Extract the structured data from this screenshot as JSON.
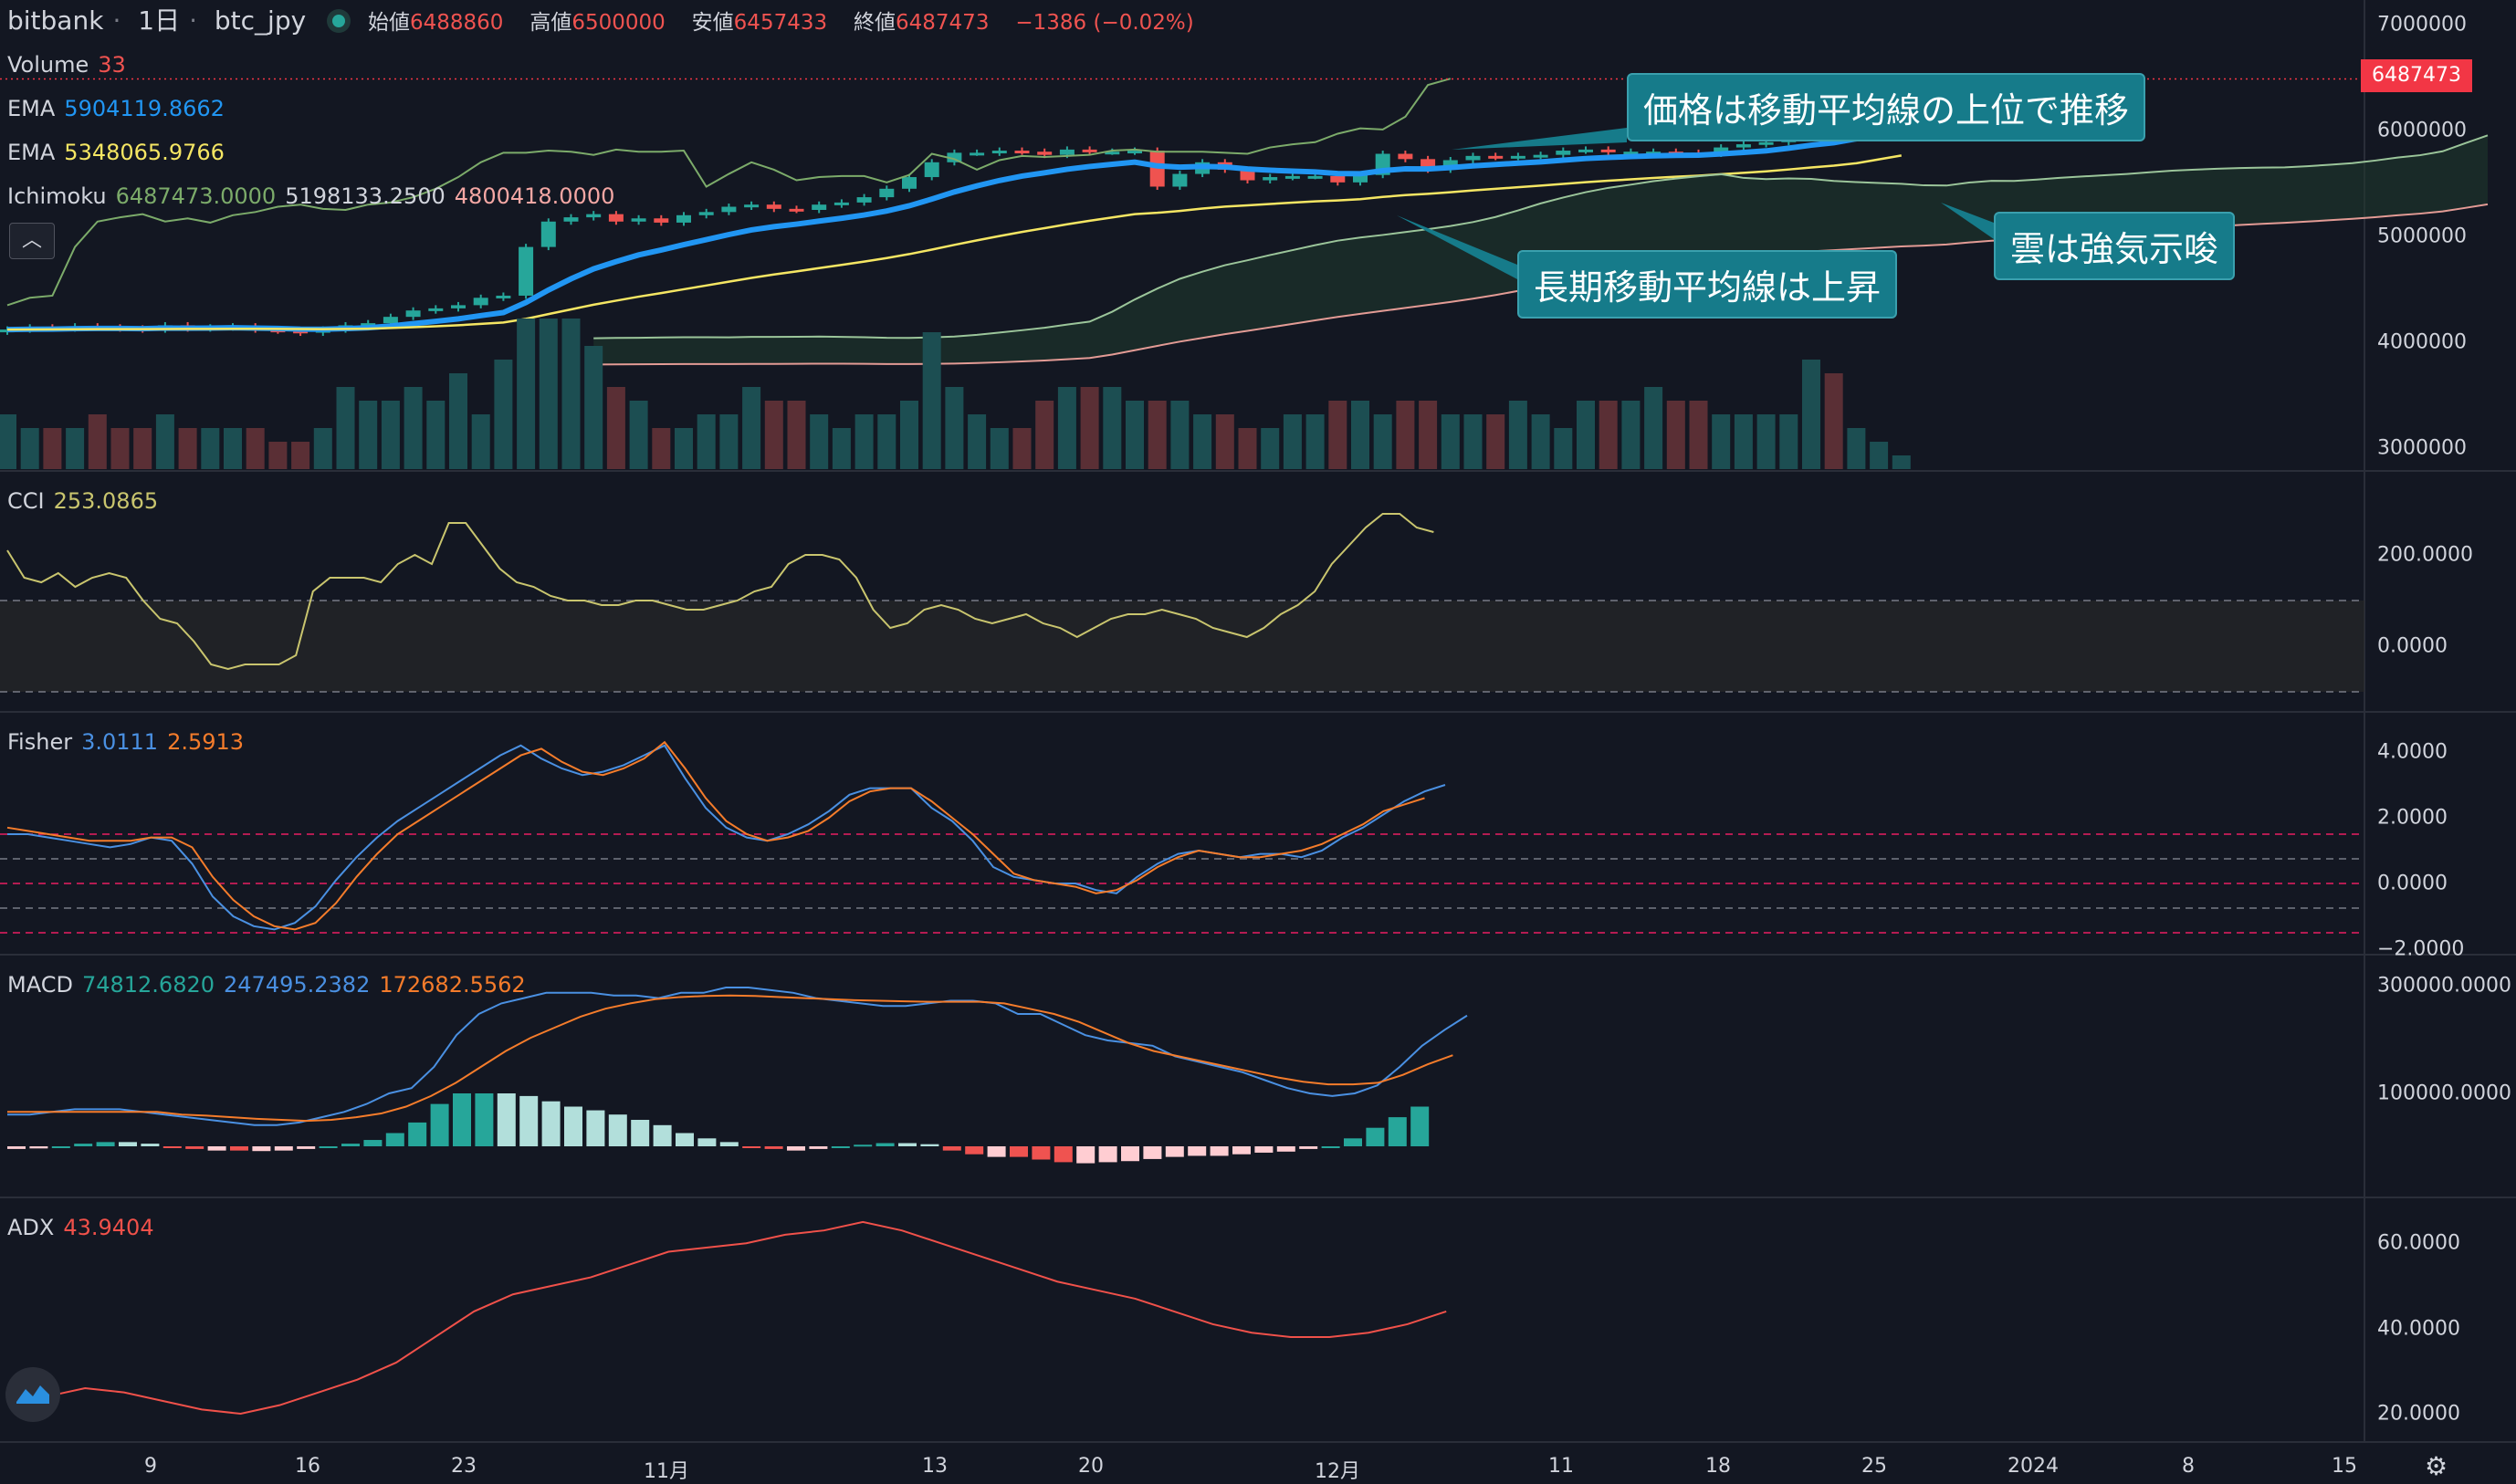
{
  "header": {
    "exchange": "bitbank",
    "interval": "1日",
    "symbol": "btc_jpy",
    "open_label": "始値",
    "open": "6488860",
    "high_label": "高値",
    "high": "6500000",
    "low_label": "安値",
    "low": "6457433",
    "close_label": "終値",
    "close": "6487473",
    "change": "−1386 (−0.02%)"
  },
  "legend": {
    "volume": {
      "name": "Volume",
      "value": "33"
    },
    "ema1": {
      "name": "EMA",
      "value": "5904119.8662"
    },
    "ema2": {
      "name": "EMA",
      "value": "5348065.9766"
    },
    "ichimoku": {
      "name": "Ichimoku",
      "v1": "6487473.0000",
      "v2": "5198133.2500",
      "v3": "4800418.0000"
    },
    "cci": {
      "name": "CCI",
      "value": "253.0865"
    },
    "fisher": {
      "name": "Fisher",
      "v1": "3.0111",
      "v2": "2.5913"
    },
    "macd": {
      "name": "MACD",
      "v1": "74812.6820",
      "v2": "247495.2382",
      "v3": "172682.5562"
    },
    "adx": {
      "name": "ADX",
      "value": "43.9404"
    }
  },
  "price_axis": [
    "7000000",
    "6000000",
    "5000000",
    "4000000",
    "3000000"
  ],
  "last_price_tag": "6487473",
  "cci_axis": [
    "200.0000",
    "0.0000"
  ],
  "fisher_axis": [
    "4.0000",
    "2.0000",
    "0.0000",
    "−2.0000"
  ],
  "macd_axis": [
    "300000.0000",
    "100000.0000"
  ],
  "adx_axis": [
    "60.0000",
    "40.0000",
    "20.0000"
  ],
  "time_axis": [
    "9",
    "16",
    "23",
    "11月",
    "13",
    "20",
    "12月",
    "11",
    "18",
    "25",
    "2024",
    "8",
    "15"
  ],
  "annotations": {
    "a1": "価格は移動平均線の上位で推移",
    "a2": "長期移動平均線は上昇",
    "a3": "雲は強気示唆"
  },
  "colors": {
    "up": "#26a69a",
    "down": "#ef5350",
    "ema1": "#2196f3",
    "ema2": "#f5e663",
    "cci": "#c9c56e",
    "fisher1": "#4a90e2",
    "fisher2": "#f57c2b",
    "adx": "#f0514a",
    "callout": "#167b8a"
  },
  "icons": {
    "collapse": "chevron-up-icon",
    "logo": "tradingview-logo-icon",
    "settings": "gear-icon"
  },
  "chart_data": [
    {
      "type": "candlestick",
      "title": "btc_jpy 1日",
      "series": [
        {
          "name": "EMA",
          "last": 5904119.8662
        },
        {
          "name": "EMA",
          "last": 5348065.9766
        },
        {
          "name": "Ichimoku",
          "last": [
            6487473.0,
            5198133.25,
            4800418.0
          ]
        }
      ],
      "close": [
        4120000,
        4140000,
        4130000,
        4150000,
        4140000,
        4130000,
        4120000,
        4160000,
        4130000,
        4140000,
        4150000,
        4120000,
        4110000,
        4090000,
        4120000,
        4160000,
        4180000,
        4240000,
        4300000,
        4320000,
        4350000,
        4420000,
        4440000,
        4900000,
        5140000,
        5180000,
        5210000,
        5140000,
        5170000,
        5130000,
        5200000,
        5230000,
        5280000,
        5300000,
        5260000,
        5250000,
        5300000,
        5320000,
        5370000,
        5450000,
        5560000,
        5700000,
        5790000,
        5790000,
        5810000,
        5800000,
        5770000,
        5820000,
        5800000,
        5800000,
        5810000,
        5470000,
        5590000,
        5700000,
        5630000,
        5530000,
        5560000,
        5570000,
        5570000,
        5510000,
        5580000,
        5780000,
        5730000,
        5630000,
        5720000,
        5760000,
        5750000,
        5760000,
        5770000,
        5810000,
        5820000,
        5800000,
        5800000,
        5800000,
        5790000,
        5780000,
        5840000,
        5870000,
        5890000,
        5970000,
        6020000,
        6010000,
        6130000,
        6430000,
        6490000
      ],
      "volume_relative": [
        0.4,
        0.3,
        0.3,
        0.3,
        0.4,
        0.3,
        0.3,
        0.4,
        0.3,
        0.3,
        0.3,
        0.3,
        0.2,
        0.2,
        0.3,
        0.6,
        0.5,
        0.5,
        0.6,
        0.5,
        0.7,
        0.4,
        0.8,
        1.1,
        1.1,
        1.1,
        0.9,
        0.6,
        0.5,
        0.3,
        0.3,
        0.4,
        0.4,
        0.6,
        0.5,
        0.5,
        0.4,
        0.3,
        0.4,
        0.4,
        0.5,
        1.0,
        0.6,
        0.4,
        0.3,
        0.3,
        0.5,
        0.6,
        0.6,
        0.6,
        0.5,
        0.5,
        0.5,
        0.4,
        0.4,
        0.3,
        0.3,
        0.4,
        0.4,
        0.5,
        0.5,
        0.4,
        0.5,
        0.5,
        0.4,
        0.4,
        0.4,
        0.5,
        0.4,
        0.3,
        0.5,
        0.5,
        0.5,
        0.6,
        0.5,
        0.5,
        0.4,
        0.4,
        0.4,
        0.4,
        0.8,
        0.7,
        0.3,
        0.2,
        0.1
      ]
    },
    {
      "type": "line",
      "title": "CCI",
      "ylim": [
        -150,
        350
      ],
      "values": [
        210,
        150,
        140,
        160,
        130,
        150,
        160,
        150,
        100,
        60,
        50,
        10,
        -40,
        -50,
        -40,
        -40,
        -40,
        -20,
        120,
        150,
        150,
        150,
        140,
        180,
        200,
        180,
        270,
        270,
        220,
        170,
        140,
        130,
        110,
        100,
        100,
        90,
        90,
        100,
        100,
        90,
        80,
        80,
        90,
        100,
        120,
        130,
        180,
        200,
        200,
        190,
        150,
        80,
        40,
        50,
        80,
        90,
        80,
        60,
        50,
        60,
        70,
        50,
        40,
        20,
        40,
        60,
        70,
        70,
        80,
        70,
        60,
        40,
        30,
        20,
        40,
        70,
        90,
        120,
        180,
        220,
        260,
        290,
        290,
        260,
        250
      ]
    },
    {
      "type": "line",
      "title": "Fisher",
      "ylim": [
        -2.2,
        4.6
      ],
      "series": [
        {
          "name": "Fisher",
          "values": [
            1.5,
            1.5,
            1.4,
            1.3,
            1.2,
            1.1,
            1.2,
            1.4,
            1.3,
            0.6,
            -0.4,
            -1.0,
            -1.3,
            -1.4,
            -1.2,
            -0.7,
            0.1,
            0.8,
            1.4,
            1.9,
            2.3,
            2.7,
            3.1,
            3.5,
            3.9,
            4.2,
            3.8,
            3.5,
            3.3,
            3.4,
            3.6,
            3.9,
            4.2,
            3.2,
            2.3,
            1.7,
            1.4,
            1.3,
            1.5,
            1.8,
            2.2,
            2.7,
            2.9,
            2.9,
            2.9,
            2.3,
            1.9,
            1.3,
            0.5,
            0.2,
            0.1,
            0.0,
            0.0,
            -0.2,
            -0.3,
            0.2,
            0.6,
            0.9,
            1.0,
            0.9,
            0.8,
            0.9,
            0.9,
            0.8,
            1.0,
            1.4,
            1.7,
            2.1,
            2.5,
            2.8,
            3.0
          ]
        },
        {
          "name": "Fisher",
          "values": [
            1.7,
            1.6,
            1.5,
            1.4,
            1.3,
            1.3,
            1.3,
            1.4,
            1.4,
            1.1,
            0.2,
            -0.5,
            -1.0,
            -1.3,
            -1.4,
            -1.2,
            -0.6,
            0.2,
            0.9,
            1.5,
            1.9,
            2.3,
            2.7,
            3.1,
            3.5,
            3.9,
            4.1,
            3.7,
            3.4,
            3.3,
            3.5,
            3.8,
            4.3,
            3.5,
            2.6,
            1.9,
            1.5,
            1.3,
            1.4,
            1.6,
            2.0,
            2.5,
            2.8,
            2.9,
            2.9,
            2.5,
            2.0,
            1.5,
            0.9,
            0.3,
            0.1,
            0.0,
            -0.1,
            -0.3,
            -0.2,
            0.1,
            0.5,
            0.8,
            1.0,
            0.9,
            0.8,
            0.8,
            0.9,
            1.0,
            1.2,
            1.5,
            1.8,
            2.2,
            2.4,
            2.6
          ]
        }
      ]
    },
    {
      "type": "bar",
      "title": "MACD",
      "ylim": [
        -50000,
        330000
      ],
      "series": [
        {
          "name": "MACD",
          "values": [
            60000,
            60000,
            65000,
            70000,
            70000,
            70000,
            65000,
            60000,
            55000,
            50000,
            45000,
            40000,
            40000,
            45000,
            55000,
            65000,
            80000,
            100000,
            110000,
            150000,
            210000,
            250000,
            270000,
            280000,
            290000,
            290000,
            290000,
            285000,
            285000,
            280000,
            290000,
            290000,
            300000,
            300000,
            295000,
            290000,
            280000,
            275000,
            270000,
            265000,
            265000,
            270000,
            275000,
            275000,
            270000,
            250000,
            250000,
            230000,
            210000,
            200000,
            195000,
            190000,
            170000,
            160000,
            150000,
            140000,
            125000,
            110000,
            100000,
            95000,
            100000,
            115000,
            150000,
            190000,
            220000,
            247000
          ]
        },
        {
          "name": "MACD",
          "values": [
            65000,
            65000,
            65000,
            65000,
            65000,
            65000,
            65000,
            60000,
            58000,
            55000,
            52000,
            50000,
            48000,
            50000,
            55000,
            62000,
            75000,
            95000,
            120000,
            150000,
            180000,
            205000,
            225000,
            245000,
            260000,
            270000,
            278000,
            282000,
            284000,
            285000,
            284000,
            282000,
            280000,
            278000,
            276000,
            275000,
            274000,
            273000,
            273000,
            273000,
            270000,
            260000,
            250000,
            235000,
            215000,
            195000,
            180000,
            170000,
            160000,
            150000,
            140000,
            130000,
            122000,
            117000,
            117000,
            120000,
            135000,
            155000,
            172000
          ]
        },
        {
          "name": "MACD",
          "values": [
            -5000,
            -4000,
            0,
            5000,
            8000,
            8000,
            5000,
            -2000,
            -5000,
            -8000,
            -8000,
            -9000,
            -8000,
            -5000,
            0,
            5000,
            12000,
            25000,
            45000,
            80000,
            100000,
            100000,
            100000,
            95000,
            85000,
            75000,
            68000,
            60000,
            50000,
            40000,
            25000,
            15000,
            8000,
            -2000,
            -5000,
            -8000,
            -5000,
            0,
            3000,
            6000,
            6000,
            4000,
            -8000,
            -15000,
            -20000,
            -20000,
            -25000,
            -30000,
            -32000,
            -30000,
            -28000,
            -24000,
            -20000,
            -18000,
            -18000,
            -15000,
            -12000,
            -10000,
            -5000,
            0,
            15000,
            35000,
            55000,
            75000
          ]
        }
      ]
    },
    {
      "type": "line",
      "title": "ADX",
      "ylim": [
        15,
        68
      ],
      "values": [
        23,
        24,
        26,
        25,
        23,
        21,
        20,
        22,
        25,
        28,
        32,
        38,
        44,
        48,
        50,
        52,
        55,
        58,
        59,
        60,
        62,
        63,
        65,
        63,
        60,
        57,
        54,
        51,
        49,
        47,
        44,
        41,
        39,
        38,
        38,
        39,
        41,
        44
      ]
    }
  ]
}
